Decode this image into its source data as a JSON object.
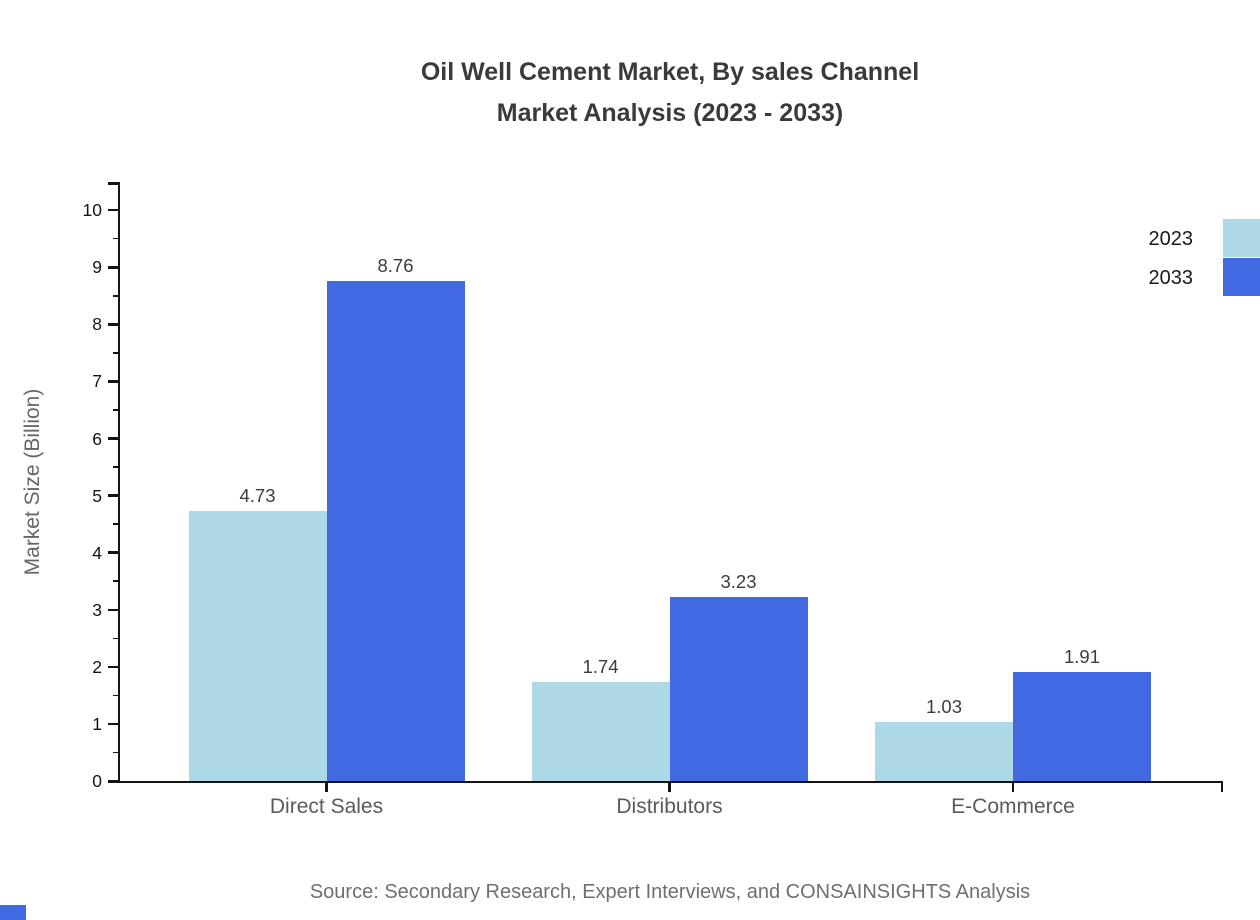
{
  "title": {
    "line1": "Oil Well Cement Market, By sales Channel",
    "line2": "Market Analysis (2023 - 2033)"
  },
  "axes": {
    "y_label": "Market Size (Billion)",
    "y_ticks": [
      0,
      1,
      2,
      3,
      4,
      5,
      6,
      7,
      8,
      9,
      10
    ]
  },
  "legend": {
    "items": [
      {
        "label": "2023",
        "color": "#ADD8E6"
      },
      {
        "label": "2033",
        "color": "#4169E1"
      }
    ],
    "position": "top-right"
  },
  "footer": {
    "source": "Source: Secondary Research, Expert Interviews, and CONSAINSIGHTS Analysis"
  },
  "colors": {
    "series_2023": "#ADD8E6",
    "series_2033": "#4169E1",
    "axis": "#141414",
    "title_text": "#3a3a3a",
    "value_label": "#3c3c3c",
    "category_label": "#5a5a5a",
    "source_text": "#6f6f6f",
    "corner_accent": "#4169E1"
  },
  "chart_data": {
    "type": "bar",
    "categories": [
      "Direct Sales",
      "Distributors",
      "E-Commerce"
    ],
    "series": [
      {
        "name": "2023",
        "color": "#ADD8E6",
        "values": [
          4.73,
          1.74,
          1.03
        ]
      },
      {
        "name": "2033",
        "color": "#4169E1",
        "values": [
          8.76,
          3.23,
          1.91
        ]
      }
    ],
    "title": "Oil Well Cement Market, By sales Channel Market Analysis (2023 - 2033)",
    "xlabel": "",
    "ylabel": "Market Size (Billion)",
    "ylim": [
      0,
      10
    ],
    "y_major_step": 1,
    "y_minor_step": 0.5,
    "grid": false,
    "legend_position": "right-top",
    "value_labels_shown": true
  }
}
